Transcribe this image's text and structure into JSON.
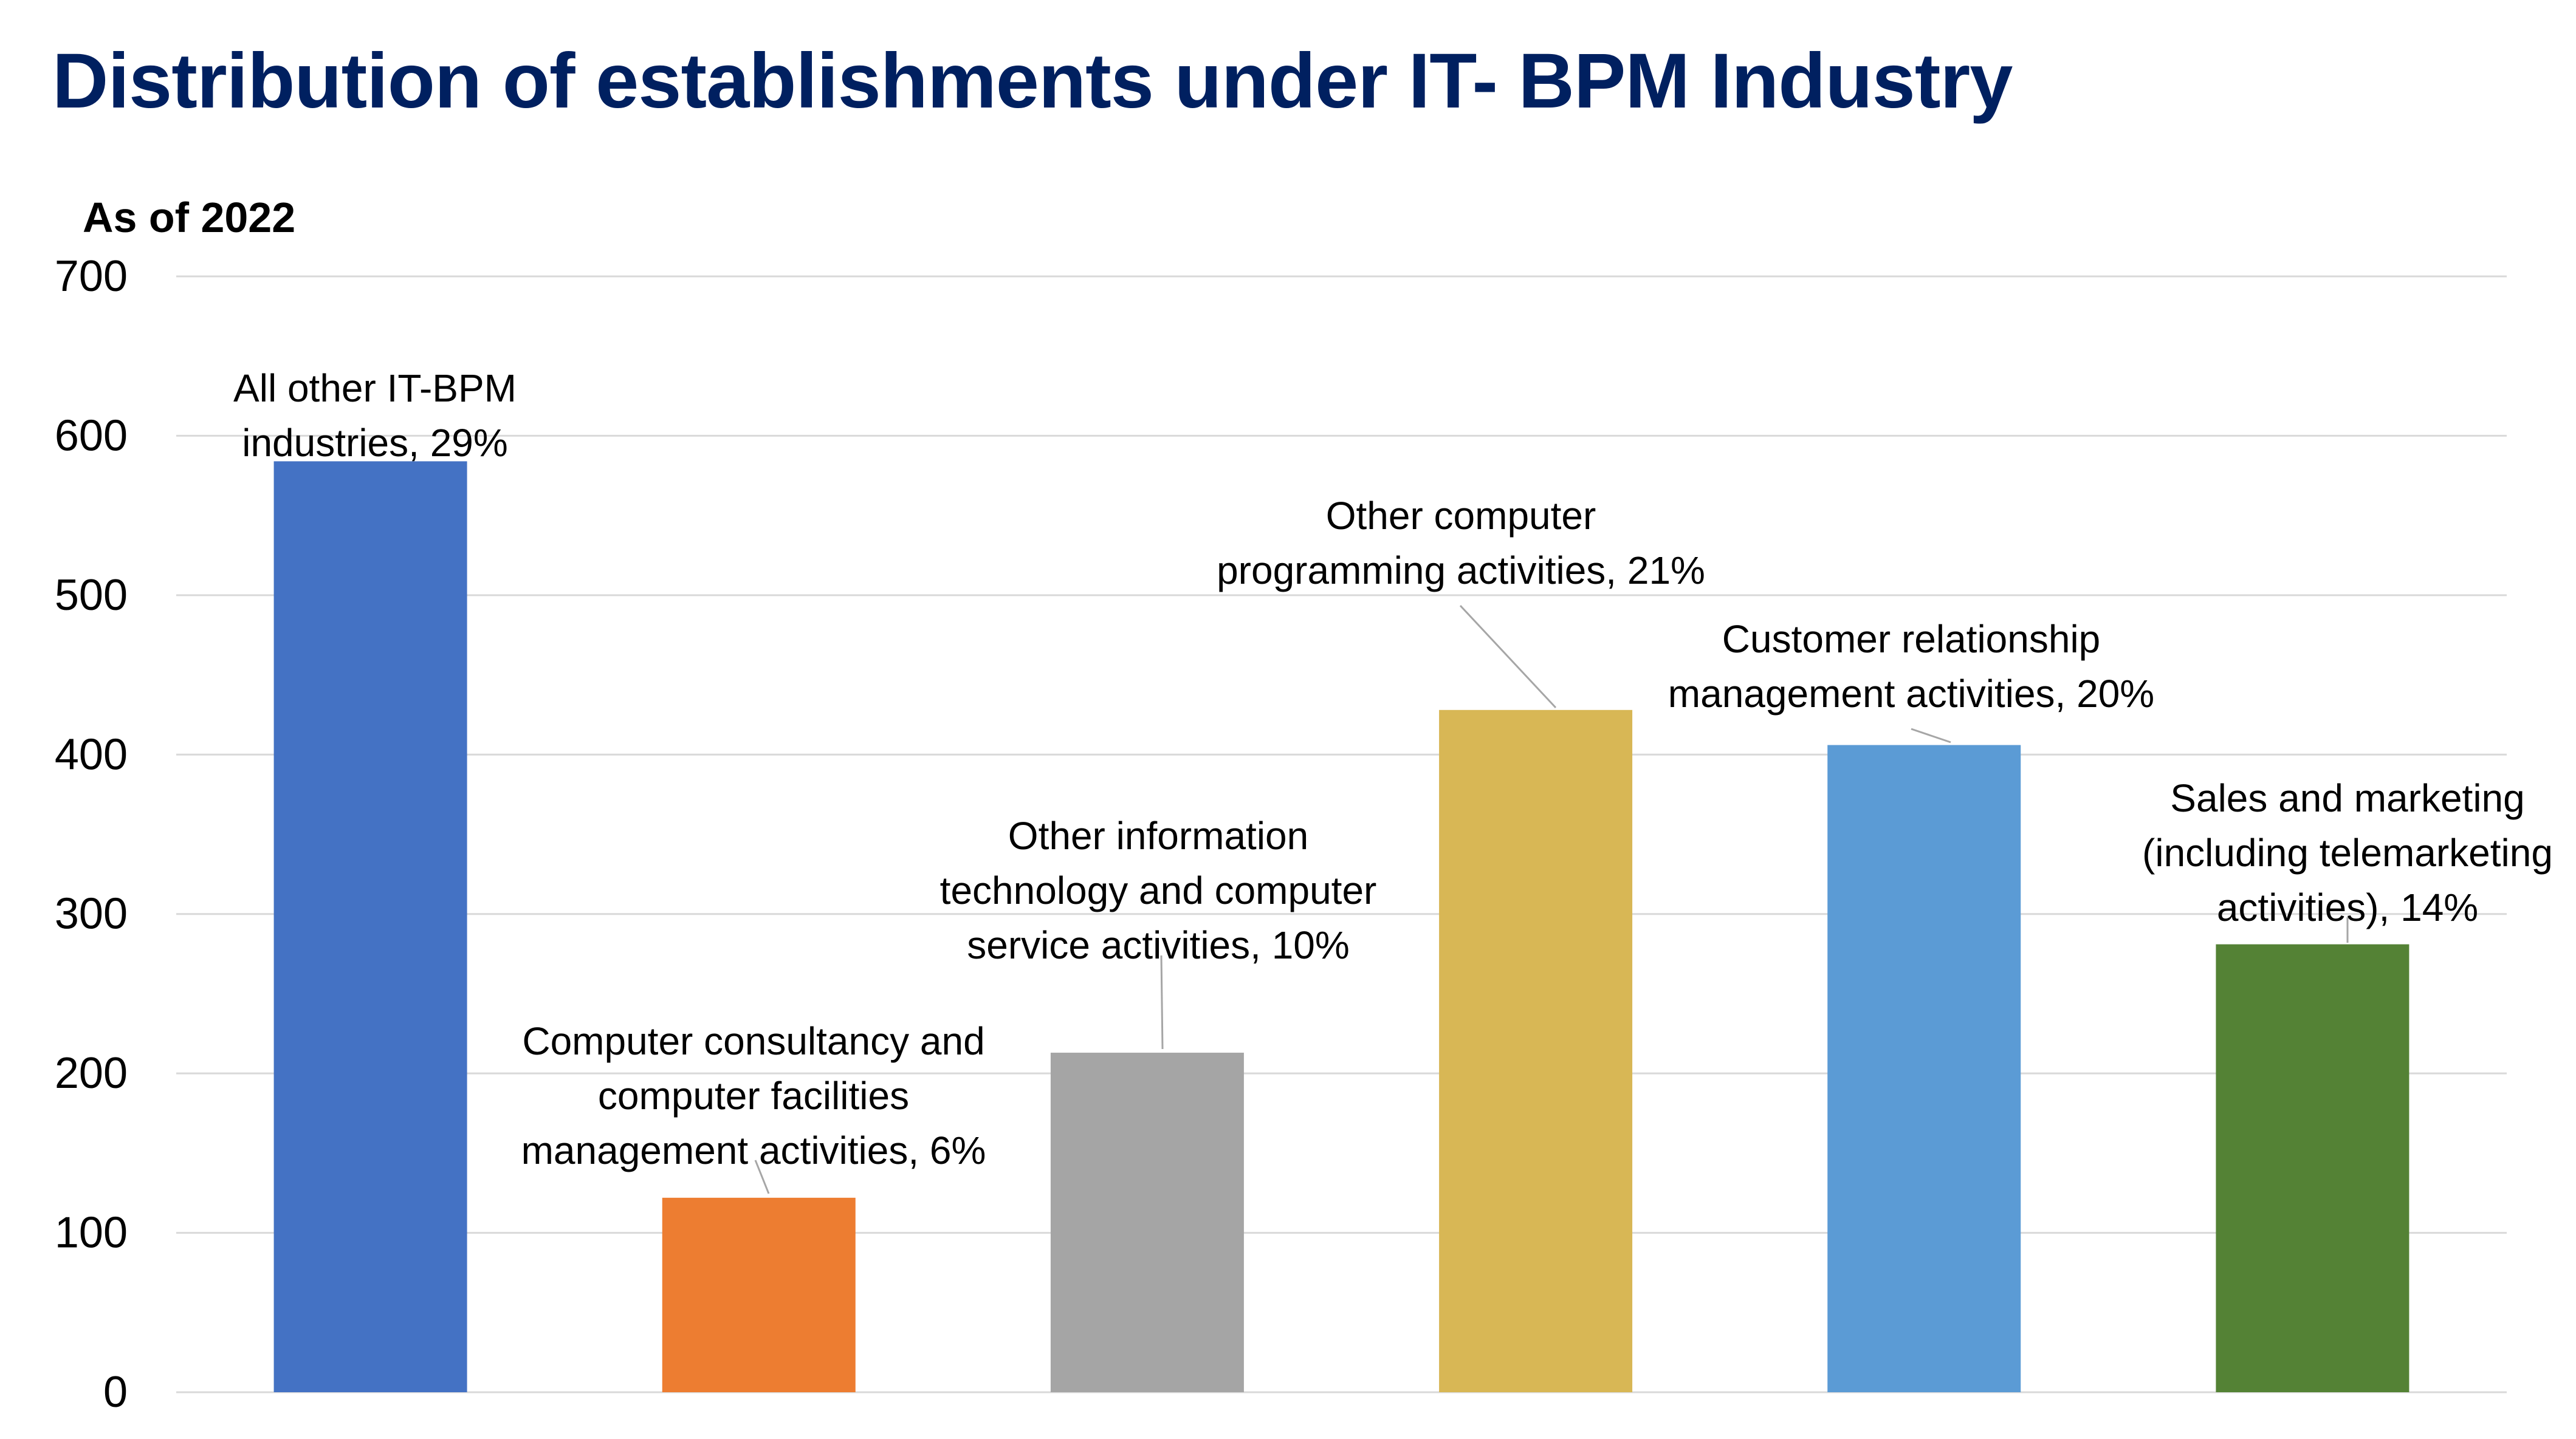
{
  "chart_data": {
    "type": "bar",
    "title": "Distribution of establishments under IT- BPM Industry",
    "subtitle": "As of 2022",
    "ylim": [
      0,
      700
    ],
    "yticks": [
      0,
      100,
      200,
      300,
      400,
      500,
      600,
      700
    ],
    "grid": true,
    "categories": [
      "All other IT-BPM industries",
      "Computer consultancy and computer facilities management activities",
      "Other information technology and computer service activities",
      "Other computer programming activities",
      "Customer relationship management activities",
      "Sales and marketing (including telemarketing activities)"
    ],
    "values": [
      584,
      122,
      213,
      428,
      406,
      281
    ],
    "percents": [
      "29%",
      "6%",
      "10%",
      "21%",
      "20%",
      "14%"
    ],
    "colors": [
      "#4472C4",
      "#ED7D31",
      "#A5A5A5",
      "#D8B755",
      "#5B9BD5",
      "#548235"
    ],
    "data_labels": [
      [
        "All other IT-BPM",
        "industries, 29%"
      ],
      [
        "Computer consultancy and",
        "computer facilities",
        "management activities, 6%"
      ],
      [
        "Other information",
        "technology and computer",
        "service activities, 10%"
      ],
      [
        "Other computer",
        "programming activities, 21%"
      ],
      [
        "Customer relationship",
        "management activities, 20%"
      ],
      [
        "Sales and marketing",
        "(including telemarketing",
        "activities), 14%"
      ]
    ]
  }
}
